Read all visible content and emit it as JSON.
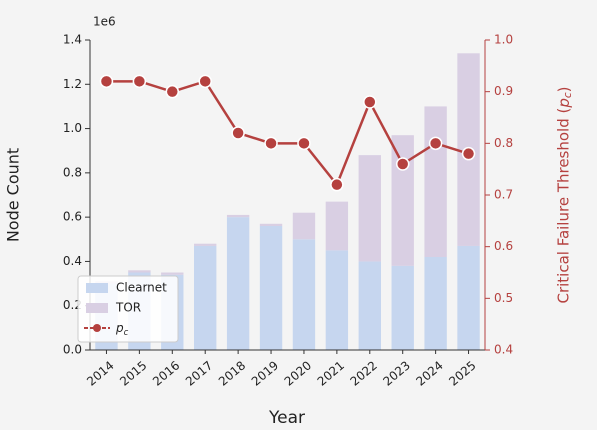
{
  "chart_data": {
    "type": "bar_line",
    "x_label": "Year",
    "y_label": "Node Count",
    "y2_label": "Critical Failure Threshold (p_c)",
    "y_scale_label": "1e6",
    "categories": [
      "2014",
      "2015",
      "2016",
      "2017",
      "2018",
      "2019",
      "2020",
      "2021",
      "2022",
      "2023",
      "2024",
      "2025"
    ],
    "series": [
      {
        "name": "Clearnet",
        "type": "bar",
        "color": "#c6d6ef",
        "values": [
          0.3,
          0.35,
          0.34,
          0.47,
          0.6,
          0.56,
          0.5,
          0.45,
          0.4,
          0.38,
          0.42,
          0.47
        ]
      },
      {
        "name": "TOR",
        "type": "bar",
        "color": "#d9cfe3",
        "values": [
          0.01,
          0.01,
          0.01,
          0.01,
          0.01,
          0.01,
          0.12,
          0.22,
          0.48,
          0.59,
          0.68,
          0.87
        ]
      },
      {
        "name": "p_c",
        "type": "line",
        "axis": "y2",
        "color": "#b5413f",
        "values": [
          0.92,
          0.92,
          0.9,
          0.92,
          0.82,
          0.8,
          0.8,
          0.72,
          0.88,
          0.76,
          0.8,
          0.78
        ]
      }
    ],
    "ylim": [
      0,
      1.4
    ],
    "yticks": [
      {
        "value": 0,
        "label": "0.0"
      },
      0.2,
      0.4,
      0.6,
      0.8,
      {
        "value": 1,
        "label": "1.0"
      },
      1.2,
      1.4
    ],
    "y2lim": [
      0.4,
      1.0
    ],
    "y2ticks": [
      0.4,
      0.5,
      0.6,
      0.7,
      0.8,
      0.9,
      {
        "value": 1,
        "label": "1.0"
      }
    ],
    "legend": "lower left"
  }
}
